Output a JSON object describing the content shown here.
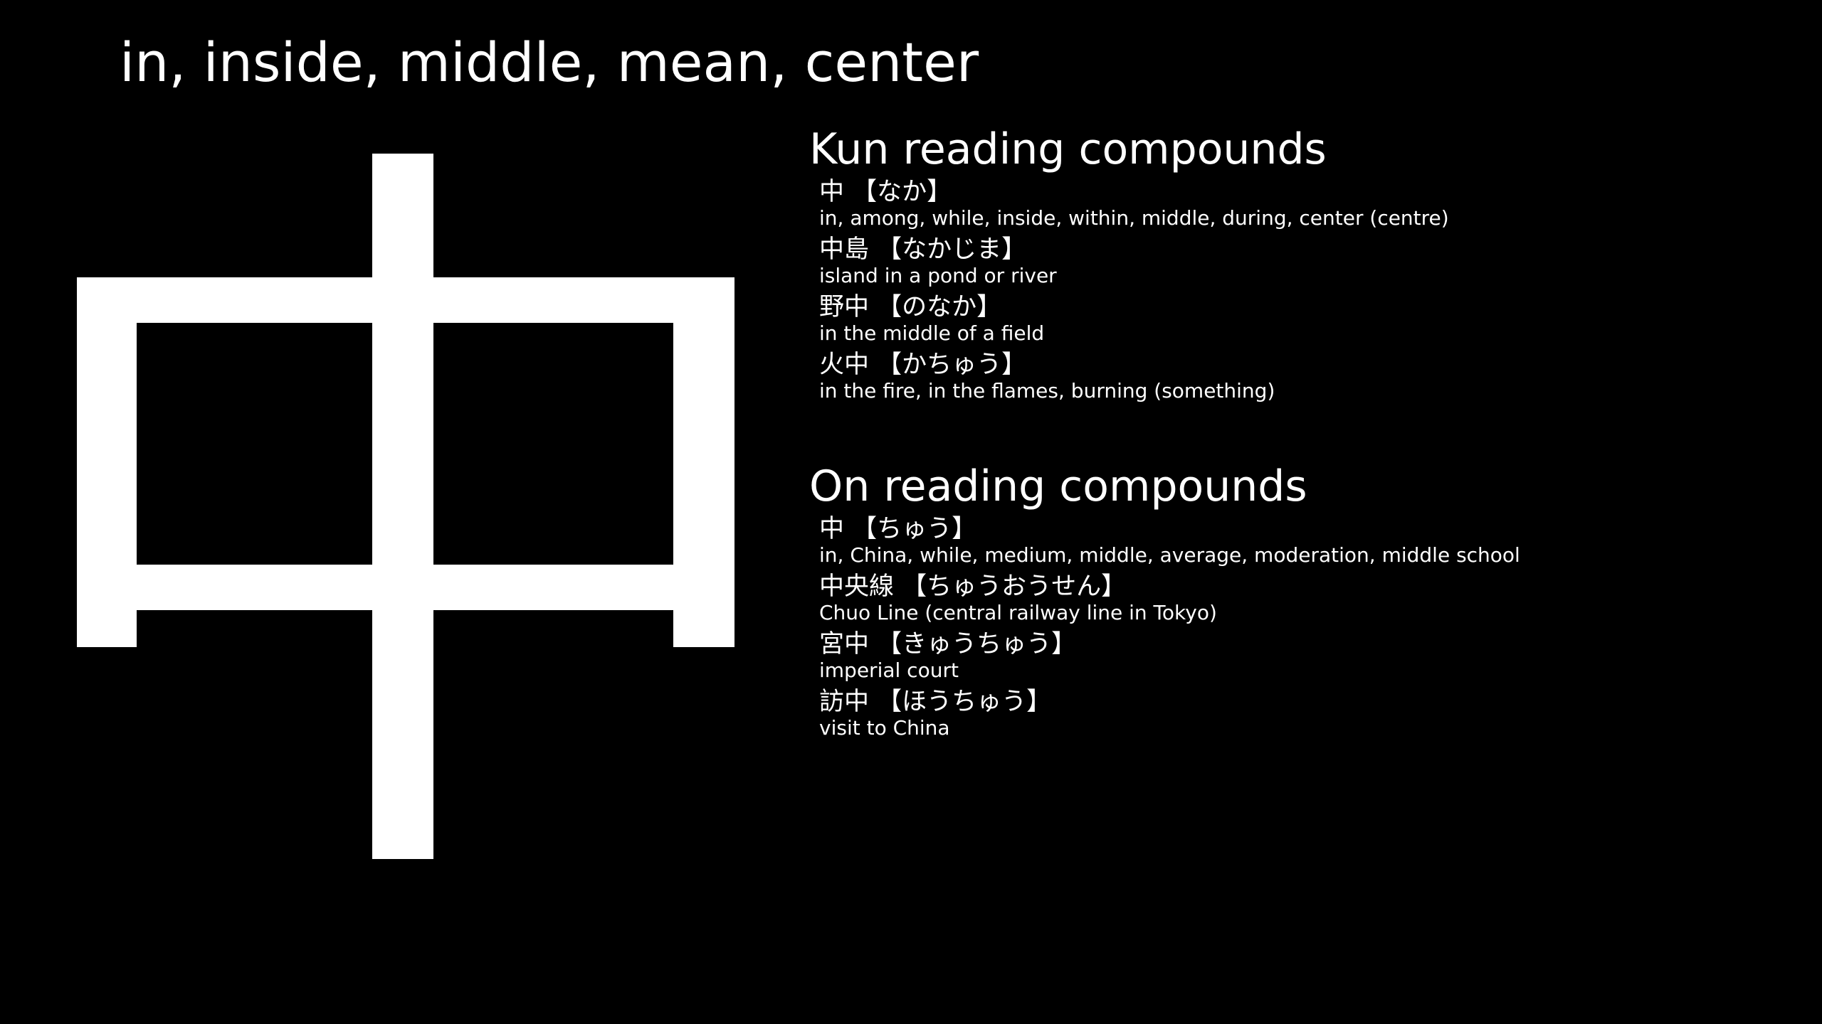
{
  "meaning": "in, inside, middle, mean, center",
  "kanji": {
    "character": "中"
  },
  "colors": {
    "background": "#000000",
    "foreground": "#ffffff"
  },
  "kun": {
    "heading": "Kun reading compounds",
    "entries": [
      {
        "word": "中 【なか】",
        "gloss": "in, among, while, inside, within, middle, during, center (centre)"
      },
      {
        "word": "中島 【なかじま】",
        "gloss": "island in a pond or river"
      },
      {
        "word": "野中 【のなか】",
        "gloss": "in the middle of a field"
      },
      {
        "word": "火中 【かちゅう】",
        "gloss": "in the fire, in the flames, burning (something)"
      }
    ]
  },
  "on": {
    "heading": "On reading compounds",
    "entries": [
      {
        "word": "中 【ちゅう】",
        "gloss": "in, China, while, medium, middle, average, moderation, middle school"
      },
      {
        "word": "中央線 【ちゅうおうせん】",
        "gloss": "Chuo Line (central railway line in Tokyo)"
      },
      {
        "word": "宮中 【きゅうちゅう】",
        "gloss": "imperial court"
      },
      {
        "word": "訪中 【ほうちゅう】",
        "gloss": "visit to China"
      }
    ]
  }
}
